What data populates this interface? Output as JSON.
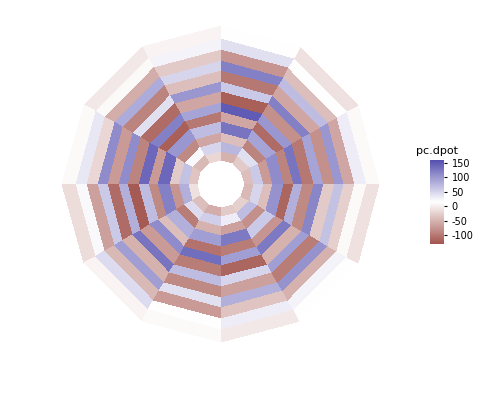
{
  "chart_data": {
    "type": "polar_heatmap",
    "tick_labels": false,
    "colors": [
      "#a3554e",
      "#ffffff",
      "#5550b0"
    ],
    "r_bins": [
      0,
      0.15,
      0.21,
      0.27,
      0.33,
      0.4,
      0.46,
      0.52,
      0.59,
      0.65,
      0.72,
      0.78,
      0.85,
      0.92,
      1.0
    ],
    "theta_bins": [
      0,
      30,
      60,
      90,
      120,
      150,
      180,
      210,
      240,
      270,
      300,
      330,
      360
    ],
    "cells": [
      [
        null,
        null,
        null,
        null,
        null,
        null,
        null,
        null,
        null,
        null,
        null,
        null
      ],
      [
        -40,
        -30,
        -50,
        -20,
        -45,
        -35,
        -10,
        -40,
        -55,
        -30,
        -25,
        -45
      ],
      [
        60,
        40,
        75,
        50,
        20,
        65,
        80,
        45,
        55,
        30,
        70,
        50
      ],
      [
        -70,
        -90,
        -40,
        -60,
        -85,
        -30,
        -75,
        -95,
        -50,
        -65,
        -80,
        -40
      ],
      [
        110,
        90,
        130,
        70,
        100,
        140,
        120,
        80,
        95,
        125,
        60,
        105
      ],
      [
        -90,
        -110,
        -60,
        -100,
        -120,
        -70,
        -85,
        -40,
        -105,
        -95,
        -75,
        -115
      ],
      [
        130,
        100,
        150,
        90,
        120,
        140,
        70,
        110,
        135,
        95,
        125,
        80
      ],
      [
        -100,
        -80,
        -120,
        -60,
        -110,
        -90,
        -125,
        -70,
        -95,
        -115,
        -50,
        -85
      ],
      [
        90,
        120,
        60,
        100,
        40,
        110,
        80,
        130,
        70,
        50,
        95,
        115
      ],
      [
        -80,
        -60,
        -100,
        -40,
        -90,
        -70,
        -110,
        -50,
        -85,
        -65,
        -95,
        -30
      ],
      [
        100,
        70,
        120,
        50,
        85,
        110,
        60,
        95,
        40,
        80,
        105,
        65
      ],
      [
        -60,
        -40,
        -75,
        -30,
        -55,
        -20,
        -65,
        -45,
        -70,
        -35,
        -50,
        -25
      ],
      [
        30,
        15,
        40,
        25,
        10,
        35,
        20,
        45,
        15,
        30,
        25,
        10
      ],
      [
        10,
        -10,
        15,
        5,
        -5,
        10,
        -15,
        5,
        10,
        -5,
        15,
        -10
      ]
    ],
    "colorbar": {
      "title": "pc.dpot",
      "range": [
        -130,
        160
      ],
      "ticks": [
        -100,
        -50,
        0,
        50,
        100,
        150
      ]
    }
  }
}
